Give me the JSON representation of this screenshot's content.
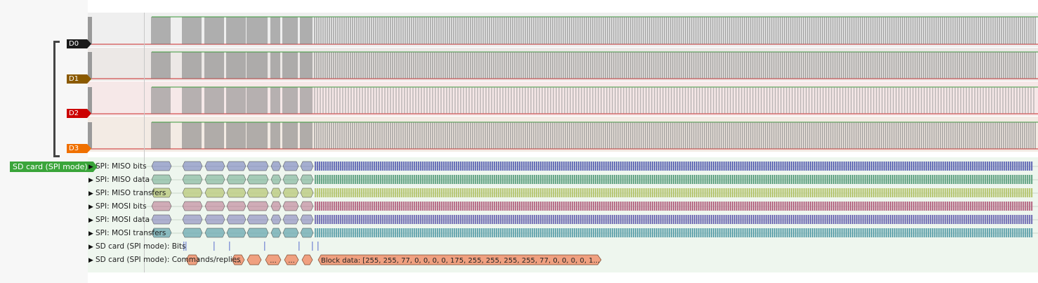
{
  "channels": [
    {
      "label": "D0",
      "color": "#1a1a1a"
    },
    {
      "label": "D1",
      "color": "#8b5a00"
    },
    {
      "label": "D2",
      "color": "#cc0000"
    },
    {
      "label": "D3",
      "color": "#f07000"
    }
  ],
  "decoder": {
    "label": "SD card (SPI mode)",
    "color": "#3aa53a",
    "rows": [
      {
        "label": "SPI: MISO bits",
        "color": "#6a72b8"
      },
      {
        "label": "SPI: MISO data",
        "color": "#6aa88a"
      },
      {
        "label": "SPI: MISO transfers",
        "color": "#b8c878"
      },
      {
        "label": "SPI: MOSI bits",
        "color": "#b8708a"
      },
      {
        "label": "SPI: MOSI data",
        "color": "#7a78b8"
      },
      {
        "label": "SPI: MOSI transfers",
        "color": "#6aa8b0"
      },
      {
        "label": "SD card (SPI mode): Bits",
        "color": "#8a9ad8"
      },
      {
        "label": "SD card (SPI mode): Commands/replies",
        "color": "#f0a080"
      }
    ],
    "ellipsis": "...",
    "block_data_text": "Block data: [255, 255, 77, 0, 0, 0, 0, 175, 255, 255, 255, 255, 77, 0, 0, 0, 0, 1..."
  }
}
